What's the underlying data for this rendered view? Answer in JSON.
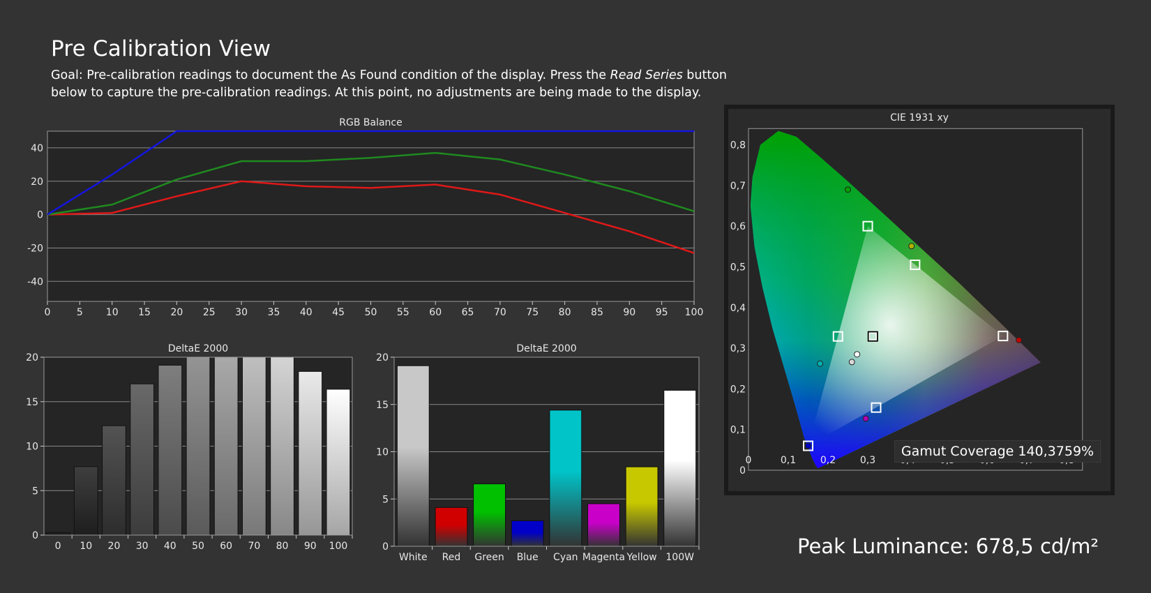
{
  "page": {
    "title": "Pre Calibration View",
    "goal_prefix": "Goal: Pre-calibration readings to document the As Found condition of the display. Press the ",
    "goal_emphasis": "Read Series",
    "goal_suffix": " button below to capture the pre-calibration readings. At this point, no adjustments are being made to the display."
  },
  "colors": {
    "background": "#333333",
    "plot_bg": "#252525",
    "grid": "#8a8a8a",
    "red_line": "#e01818",
    "green_line": "#1f8a1f",
    "blue_line": "#1515e0"
  },
  "gamut_coverage": "Gamut Coverage 140,3759%",
  "peak_luminance": "Peak Luminance: 678,5 cd/m²",
  "chart_data": [
    {
      "type": "line",
      "title": "RGB Balance",
      "x": [
        0,
        10,
        20,
        30,
        40,
        50,
        60,
        70,
        80,
        90,
        100
      ],
      "x_ticks": [
        "0",
        "5",
        "10",
        "15",
        "20",
        "25",
        "30",
        "35",
        "40",
        "45",
        "50",
        "55",
        "60",
        "65",
        "70",
        "75",
        "80",
        "85",
        "90",
        "95",
        "100"
      ],
      "y_ticks": [
        "40",
        "20",
        "0",
        "-20",
        "-40"
      ],
      "ylim": [
        -52,
        50
      ],
      "xlim": [
        0,
        100
      ],
      "grid": true,
      "series": [
        {
          "color": "red",
          "values": [
            0,
            1,
            11,
            20,
            17,
            16,
            18,
            12,
            1,
            -10,
            -23
          ]
        },
        {
          "color": "green",
          "values": [
            0,
            6,
            21,
            32,
            32,
            34,
            37,
            33,
            24,
            14,
            2
          ]
        },
        {
          "color": "blue",
          "values": [
            0,
            24,
            50,
            50,
            50,
            50,
            50,
            50,
            50,
            50,
            50
          ]
        }
      ]
    },
    {
      "type": "bar",
      "title": "DeltaE 2000",
      "categories": [
        "0",
        "10",
        "20",
        "30",
        "40",
        "50",
        "60",
        "70",
        "80",
        "90",
        "100"
      ],
      "values": [
        0.3,
        7.7,
        12.3,
        17.0,
        19.1,
        20,
        20,
        20,
        20,
        18.4,
        16.4
      ],
      "y_ticks": [
        "20",
        "15",
        "10",
        "5",
        "0"
      ],
      "ylim": [
        0,
        20
      ],
      "grid": true
    },
    {
      "type": "bar",
      "title": "DeltaE 2000",
      "categories": [
        "White",
        "Red",
        "Green",
        "Blue",
        "Cyan",
        "Magenta",
        "Yellow",
        "100W"
      ],
      "values": [
        19.1,
        4.1,
        6.6,
        2.7,
        14.4,
        4.5,
        8.4,
        16.5
      ],
      "bar_colors": [
        "#c8c8c8",
        "#d00000",
        "#00c000",
        "#0000c8",
        "#00c4c8",
        "#c800c8",
        "#c8c800",
        "#ffffff"
      ],
      "y_ticks": [
        "20",
        "15",
        "10",
        "5",
        "0"
      ],
      "ylim": [
        0,
        20
      ],
      "grid": true
    },
    {
      "type": "scatter",
      "title": "CIE 1931 xy",
      "x_ticks": [
        "0",
        "0,1",
        "0,2",
        "0,3",
        "0,4",
        "0,5",
        "0,6",
        "0,7",
        "0,8"
      ],
      "y_ticks": [
        "0,8",
        "0,7",
        "0,6",
        "0,5",
        "0,4",
        "0,3",
        "0,2",
        "0,1",
        "0"
      ],
      "xlim": [
        0,
        0.84
      ],
      "ylim": [
        0,
        0.84
      ],
      "targets": [
        {
          "name": "R",
          "x": 0.64,
          "y": 0.33
        },
        {
          "name": "G",
          "x": 0.3,
          "y": 0.6
        },
        {
          "name": "B",
          "x": 0.15,
          "y": 0.06
        },
        {
          "name": "C",
          "x": 0.225,
          "y": 0.329
        },
        {
          "name": "M",
          "x": 0.321,
          "y": 0.154
        },
        {
          "name": "Y",
          "x": 0.419,
          "y": 0.505
        },
        {
          "name": "W",
          "x": 0.3127,
          "y": 0.329
        }
      ],
      "measured": [
        {
          "name": "R",
          "x": 0.68,
          "y": 0.32,
          "color": "#c00000"
        },
        {
          "name": "G",
          "x": 0.25,
          "y": 0.69,
          "color": "#00a000"
        },
        {
          "name": "B",
          "x": 0.15,
          "y": 0.06,
          "color": "#0000c0"
        },
        {
          "name": "C",
          "x": 0.18,
          "y": 0.262,
          "color": "#00b0b0"
        },
        {
          "name": "M",
          "x": 0.295,
          "y": 0.127,
          "color": "#b000b0"
        },
        {
          "name": "Y",
          "x": 0.41,
          "y": 0.551,
          "color": "#b0b000"
        },
        {
          "name": "W",
          "x": 0.26,
          "y": 0.266,
          "color": "#d8d8d8"
        },
        {
          "name": "W100",
          "x": 0.273,
          "y": 0.285,
          "color": "#ffffff"
        }
      ]
    }
  ]
}
